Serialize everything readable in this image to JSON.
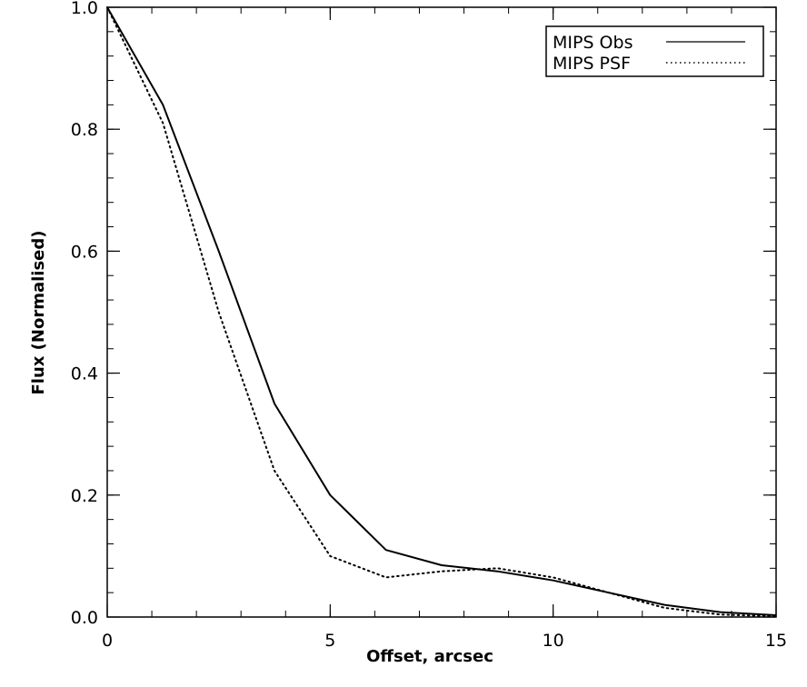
{
  "chart_data": {
    "type": "line",
    "title": "",
    "xlabel": "Offset, arcsec",
    "ylabel": "Flux (Normalised)",
    "xlim": [
      0,
      15
    ],
    "ylim": [
      0,
      1
    ],
    "x_ticks": [
      0,
      5,
      10,
      15
    ],
    "x_tick_labels": [
      "0",
      "5",
      "10",
      "15"
    ],
    "y_ticks": [
      0.0,
      0.2,
      0.4,
      0.6,
      0.8,
      1.0
    ],
    "y_tick_labels": [
      "0.0",
      "0.2",
      "0.4",
      "0.6",
      "0.8",
      "1.0"
    ],
    "x_minor_step": 1,
    "y_minor_step": 0.04,
    "grid": false,
    "legend_position": "top-right",
    "series": [
      {
        "name": "MIPS Obs",
        "style": "solid",
        "color": "#000000",
        "x": [
          0,
          1.25,
          2.5,
          3.75,
          5,
          6.25,
          7.5,
          8.75,
          10,
          11.25,
          12.5,
          13.75,
          15
        ],
        "y": [
          1.0,
          0.84,
          0.6,
          0.35,
          0.2,
          0.11,
          0.085,
          0.075,
          0.06,
          0.04,
          0.02,
          0.008,
          0.003
        ]
      },
      {
        "name": "MIPS PSF",
        "style": "dotted",
        "color": "#000000",
        "x": [
          0,
          1.25,
          2.5,
          3.75,
          5,
          6.25,
          7.5,
          8.75,
          10,
          11.25,
          12.5,
          13.75,
          15
        ],
        "y": [
          1.0,
          0.81,
          0.5,
          0.24,
          0.1,
          0.065,
          0.075,
          0.08,
          0.065,
          0.04,
          0.015,
          0.004,
          0.001
        ]
      }
    ]
  }
}
